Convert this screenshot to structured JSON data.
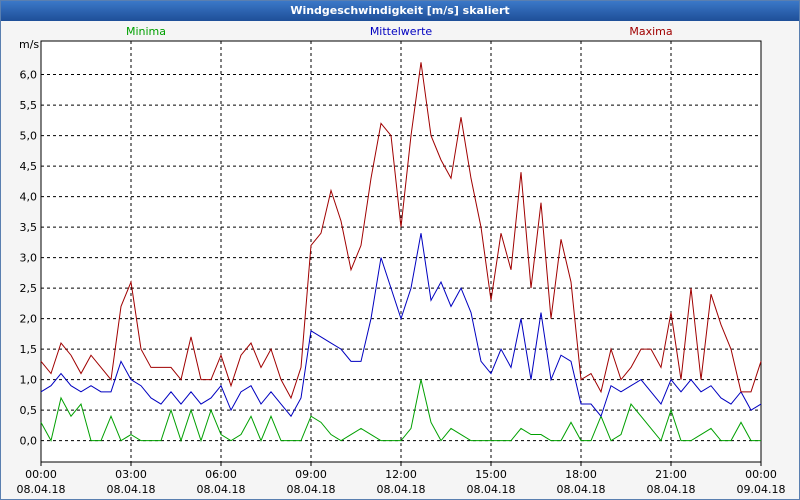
{
  "chart_data": {
    "type": "line",
    "title": "Windgeschwindigkeit [m/s] skaliert",
    "y_label": "m/s",
    "x": [
      0,
      20,
      40,
      60,
      80,
      100,
      120,
      140,
      160,
      180,
      200,
      220,
      240,
      260,
      280,
      300,
      320,
      340,
      360,
      380,
      400,
      420,
      440,
      460,
      480,
      500,
      520,
      540,
      560,
      580,
      600,
      620,
      640,
      660,
      680,
      700,
      720,
      740,
      760,
      780,
      800,
      820,
      840,
      860,
      880,
      900,
      920,
      940,
      960,
      980,
      1000,
      1020,
      1040,
      1060,
      1080,
      1100,
      1120,
      1140,
      1160,
      1180,
      1200,
      1220,
      1240,
      1260,
      1280,
      1300,
      1320,
      1340,
      1360,
      1380,
      1400,
      1420,
      1440
    ],
    "series": [
      {
        "name": "Minima",
        "color": "#00a000",
        "values": [
          0.3,
          0.0,
          0.7,
          0.4,
          0.6,
          0.0,
          0.0,
          0.4,
          0.0,
          0.1,
          0.0,
          0.0,
          0.0,
          0.5,
          0.0,
          0.5,
          0.0,
          0.5,
          0.1,
          0.0,
          0.1,
          0.4,
          0.0,
          0.4,
          0.0,
          0.0,
          0.0,
          0.4,
          0.3,
          0.1,
          0.0,
          0.1,
          0.2,
          0.1,
          0.0,
          0.0,
          0.0,
          0.2,
          1.0,
          0.3,
          0.0,
          0.2,
          0.1,
          0.0,
          0.0,
          0.0,
          0.0,
          0.0,
          0.2,
          0.1,
          0.1,
          0.0,
          0.0,
          0.3,
          0.0,
          0.0,
          0.4,
          0.0,
          0.1,
          0.6,
          0.4,
          0.2,
          0.0,
          0.5,
          0.0,
          0.0,
          0.1,
          0.2,
          0.0,
          0.0,
          0.3,
          0.0,
          0.0
        ]
      },
      {
        "name": "Mittelwerte",
        "color": "#0000c0",
        "values": [
          0.8,
          0.9,
          1.1,
          0.9,
          0.8,
          0.9,
          0.8,
          0.8,
          1.3,
          1.0,
          0.9,
          0.7,
          0.6,
          0.8,
          0.6,
          0.8,
          0.6,
          0.7,
          0.9,
          0.5,
          0.8,
          0.9,
          0.6,
          0.8,
          0.6,
          0.4,
          0.7,
          1.8,
          1.7,
          1.6,
          1.5,
          1.3,
          1.3,
          2.0,
          3.0,
          2.5,
          2.0,
          2.5,
          3.4,
          2.3,
          2.6,
          2.2,
          2.5,
          2.1,
          1.3,
          1.1,
          1.5,
          1.2,
          2.0,
          1.0,
          2.1,
          1.0,
          1.4,
          1.3,
          0.6,
          0.6,
          0.4,
          0.9,
          0.8,
          0.9,
          1.0,
          0.8,
          0.6,
          1.0,
          0.8,
          1.0,
          0.8,
          0.9,
          0.7,
          0.6,
          0.8,
          0.5,
          0.6
        ]
      },
      {
        "name": "Maxima",
        "color": "#a00000",
        "values": [
          1.3,
          1.1,
          1.6,
          1.4,
          1.1,
          1.4,
          1.2,
          1.0,
          2.2,
          2.6,
          1.5,
          1.2,
          1.2,
          1.2,
          1.0,
          1.7,
          1.0,
          1.0,
          1.4,
          0.9,
          1.4,
          1.6,
          1.2,
          1.5,
          1.0,
          0.7,
          1.2,
          3.2,
          3.4,
          4.1,
          3.6,
          2.8,
          3.2,
          4.3,
          5.2,
          5.0,
          3.5,
          5.0,
          6.2,
          5.0,
          4.6,
          4.3,
          5.3,
          4.3,
          3.5,
          2.3,
          3.4,
          2.8,
          4.4,
          2.5,
          3.9,
          2.0,
          3.3,
          2.6,
          1.0,
          1.1,
          0.8,
          1.5,
          1.0,
          1.2,
          1.5,
          1.5,
          1.2,
          2.1,
          1.0,
          2.5,
          1.0,
          2.4,
          1.9,
          1.5,
          0.8,
          0.8,
          1.3
        ]
      }
    ],
    "xlim": [
      0,
      1440
    ],
    "xticks": [
      {
        "value": 0,
        "label": "00:00"
      },
      {
        "value": 180,
        "label": "03:00"
      },
      {
        "value": 360,
        "label": "06:00"
      },
      {
        "value": 540,
        "label": "09:00"
      },
      {
        "value": 720,
        "label": "12:00"
      },
      {
        "value": 900,
        "label": "15:00"
      },
      {
        "value": 1080,
        "label": "18:00"
      },
      {
        "value": 1260,
        "label": "21:00"
      },
      {
        "value": 1440,
        "label": "00:00"
      }
    ],
    "xtick_dates": [
      "08.04.18",
      "08.04.18",
      "08.04.18",
      "08.04.18",
      "08.04.18",
      "08.04.18",
      "08.04.18",
      "08.04.18",
      "09.04.18"
    ],
    "ylim": [
      -0.35,
      6.55
    ],
    "yticks": [
      {
        "value": 0,
        "label": "0,0"
      },
      {
        "value": 0.5,
        "label": "0,5"
      },
      {
        "value": 1,
        "label": "1,0"
      },
      {
        "value": 1.5,
        "label": "1,5"
      },
      {
        "value": 2,
        "label": "2,0"
      },
      {
        "value": 2.5,
        "label": "2,5"
      },
      {
        "value": 3,
        "label": "3,0"
      },
      {
        "value": 3.5,
        "label": "3,5"
      },
      {
        "value": 4,
        "label": "4,0"
      },
      {
        "value": 4.5,
        "label": "4,5"
      },
      {
        "value": 5,
        "label": "5,0"
      },
      {
        "value": 5.5,
        "label": "5,5"
      },
      {
        "value": 6,
        "label": "6,0"
      }
    ],
    "grid": true
  }
}
